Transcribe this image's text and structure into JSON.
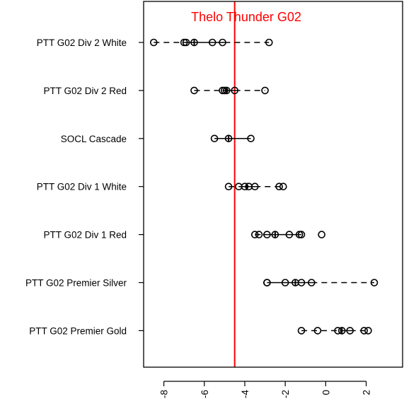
{
  "chart_data": {
    "type": "scatter",
    "subtype": "horizontal-box-dot-plot",
    "title": "Thelo Thunder G02",
    "title_color": "#ff0000",
    "xlim": [
      -9.0,
      3.8
    ],
    "x_ticks": [
      -8,
      -6,
      -4,
      -2,
      0,
      2
    ],
    "x_tick_labels": [
      "-8",
      "-6",
      "-4",
      "-2",
      "0",
      "2"
    ],
    "reference_line": {
      "x": -4.5,
      "color": "#ff0000"
    },
    "point_color": "#000000",
    "categories": [
      "PTT G02 Div 2 White",
      "PTT G02 Div 2 Red",
      "SOCL Cascade",
      "PTT G02 Div 1 White",
      "PTT G02 Div 1 Red",
      "PTT G02 Premier Silver",
      "PTT G02 Premier Gold"
    ],
    "groups": [
      {
        "name": "PTT G02 Div 2 White",
        "whisker_low": -8.5,
        "q1": -7.0,
        "median": -6.5,
        "q3": -5.0,
        "whisker_high": -2.8,
        "points": [
          -8.5,
          -7.0,
          -6.9,
          -6.5,
          -5.6,
          -5.1,
          -2.8
        ]
      },
      {
        "name": "PTT G02 Div 2 Red",
        "whisker_low": -6.5,
        "q1": -5.1,
        "median": -4.9,
        "q3": -4.5,
        "whisker_high": -3.0,
        "points": [
          -6.5,
          -5.1,
          -5.0,
          -4.9,
          -4.5,
          -3.0
        ]
      },
      {
        "name": "SOCL Cascade",
        "whisker_low": -5.5,
        "q1": -5.5,
        "median": -4.8,
        "q3": -3.7,
        "whisker_high": -3.7,
        "points": [
          -5.5,
          -4.8,
          -3.7
        ]
      },
      {
        "name": "PTT G02 Div 1 White",
        "whisker_low": -4.8,
        "q1": -4.3,
        "median": -3.9,
        "q3": -3.5,
        "whisker_high": -2.1,
        "points": [
          -4.8,
          -4.3,
          -4.0,
          -3.8,
          -3.5,
          -2.3,
          -2.1
        ]
      },
      {
        "name": "PTT G02 Div 1 Red",
        "whisker_low": -3.5,
        "q1": -3.1,
        "median": -2.5,
        "q3": -1.2,
        "whisker_high": -1.2,
        "points": [
          -3.5,
          -3.3,
          -2.9,
          -2.5,
          -1.8,
          -1.3,
          -1.2,
          -0.2
        ]
      },
      {
        "name": "PTT G02 Premier Silver",
        "whisker_low": -2.9,
        "q1": -2.9,
        "median": -1.5,
        "q3": -0.7,
        "whisker_high": 2.4,
        "points": [
          -2.9,
          -2.9,
          -2.0,
          -1.5,
          -1.2,
          -0.7,
          2.4
        ]
      },
      {
        "name": "PTT G02 Premier Gold",
        "whisker_low": -1.2,
        "q1": 0.7,
        "median": 0.8,
        "q3": 1.2,
        "whisker_high": 2.1,
        "points": [
          -1.2,
          -0.4,
          0.6,
          0.8,
          1.2,
          1.9,
          2.1
        ]
      }
    ]
  }
}
